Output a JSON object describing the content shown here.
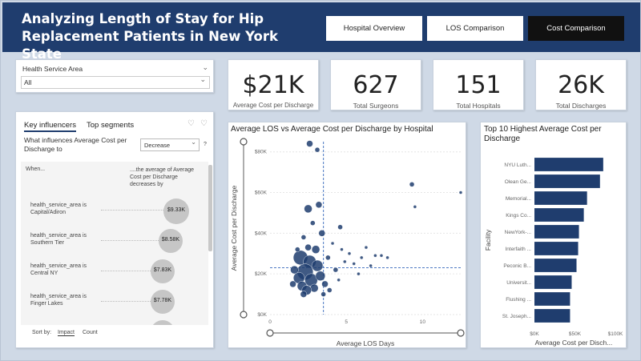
{
  "header": {
    "title_line1": "Analyzing Length of Stay for Hip",
    "title_line2": "Replacement Patients in New York State",
    "nav": [
      "Hospital Overview",
      "LOS Comparison",
      "Cost Comparison"
    ],
    "active_nav": "Cost Comparison"
  },
  "filter": {
    "label": "Health Service Area",
    "selected": "All"
  },
  "kpis": [
    {
      "value": "$21K",
      "label": "Average Cost per Discharge"
    },
    {
      "value": "627",
      "label": "Total Surgeons"
    },
    {
      "value": "151",
      "label": "Total Hospitals"
    },
    {
      "value": "26K",
      "label": "Total Discharges"
    }
  ],
  "influencers": {
    "tabs": [
      "Key influencers",
      "Top segments"
    ],
    "question": "What influences Average Cost per Discharge to",
    "direction": "Decrease",
    "help": "?",
    "col_when": "When...",
    "col_result": "....the average of Average Cost per Discharge decreases by",
    "rows": [
      {
        "condition": "health_service_area is Capital/Adiron",
        "value": "$9.33K"
      },
      {
        "condition": "health_service_area is Southern Tier",
        "value": "$8.58K"
      },
      {
        "condition": "health_service_area is Central NY",
        "value": "$7.83K"
      },
      {
        "condition": "health_service_area is Finger Lakes",
        "value": "$7.78K"
      }
    ],
    "sort_label": "Sort by:",
    "sort_options": [
      "Impact",
      "Count"
    ]
  },
  "scatter": {
    "title": "Average LOS vs Average Cost per Discharge by Hospital",
    "chart_data": {
      "type": "scatter",
      "title": "Average LOS vs Average Cost per Discharge by Hospital",
      "xlabel": "Average LOS Days",
      "ylabel": "Average Cost per Discharge",
      "xlim": [
        0,
        12.5
      ],
      "ylim": [
        0,
        85000
      ],
      "xticks": [
        "0",
        "5",
        "10"
      ],
      "xtick_values": [
        0,
        5,
        10
      ],
      "yticks": [
        "$0K",
        "$20K",
        "$40K",
        "$60K",
        "$80K"
      ],
      "ytick_values": [
        0,
        20000,
        40000,
        60000,
        80000
      ],
      "avg_x": 3.5,
      "avg_y": 23000,
      "color": "#1f3d6e",
      "points": [
        {
          "x": 2.6,
          "y": 84000,
          "r": 4
        },
        {
          "x": 3.1,
          "y": 81000,
          "r": 3
        },
        {
          "x": 9.3,
          "y": 64000,
          "r": 3
        },
        {
          "x": 9.5,
          "y": 53000,
          "r": 2
        },
        {
          "x": 12.5,
          "y": 60000,
          "r": 2
        },
        {
          "x": 2.5,
          "y": 52000,
          "r": 5
        },
        {
          "x": 3.2,
          "y": 54000,
          "r": 4
        },
        {
          "x": 2.8,
          "y": 45000,
          "r": 3
        },
        {
          "x": 4.6,
          "y": 43000,
          "r": 3
        },
        {
          "x": 3.4,
          "y": 40000,
          "r": 4
        },
        {
          "x": 2.2,
          "y": 38000,
          "r": 3
        },
        {
          "x": 4.1,
          "y": 35000,
          "r": 2
        },
        {
          "x": 6.3,
          "y": 33000,
          "r": 2
        },
        {
          "x": 3.0,
          "y": 32000,
          "r": 5
        },
        {
          "x": 2.0,
          "y": 28000,
          "r": 9
        },
        {
          "x": 2.6,
          "y": 26000,
          "r": 8
        },
        {
          "x": 3.1,
          "y": 24000,
          "r": 7
        },
        {
          "x": 2.3,
          "y": 21000,
          "r": 10
        },
        {
          "x": 1.9,
          "y": 18000,
          "r": 7
        },
        {
          "x": 2.7,
          "y": 17000,
          "r": 8
        },
        {
          "x": 3.3,
          "y": 19000,
          "r": 6
        },
        {
          "x": 2.1,
          "y": 14000,
          "r": 6
        },
        {
          "x": 2.9,
          "y": 13000,
          "r": 5
        },
        {
          "x": 1.6,
          "y": 22000,
          "r": 5
        },
        {
          "x": 2.4,
          "y": 12000,
          "r": 6
        },
        {
          "x": 3.6,
          "y": 15000,
          "r": 4
        },
        {
          "x": 1.5,
          "y": 15000,
          "r": 4
        },
        {
          "x": 3.8,
          "y": 28000,
          "r": 3
        },
        {
          "x": 4.3,
          "y": 22000,
          "r": 3
        },
        {
          "x": 4.9,
          "y": 26000,
          "r": 2
        },
        {
          "x": 5.2,
          "y": 30000,
          "r": 2
        },
        {
          "x": 5.5,
          "y": 25000,
          "r": 2
        },
        {
          "x": 6.0,
          "y": 28000,
          "r": 2
        },
        {
          "x": 6.9,
          "y": 29000,
          "r": 2
        },
        {
          "x": 7.3,
          "y": 29000,
          "r": 2
        },
        {
          "x": 7.7,
          "y": 28000,
          "r": 2
        },
        {
          "x": 6.6,
          "y": 24000,
          "r": 2
        },
        {
          "x": 4.5,
          "y": 17000,
          "r": 2
        },
        {
          "x": 3.9,
          "y": 12000,
          "r": 3
        },
        {
          "x": 2.2,
          "y": 10000,
          "r": 4
        },
        {
          "x": 3.5,
          "y": 10000,
          "r": 3
        },
        {
          "x": 4.7,
          "y": 32000,
          "r": 2
        },
        {
          "x": 5.8,
          "y": 20000,
          "r": 2
        },
        {
          "x": 2.5,
          "y": 33000,
          "r": 4
        },
        {
          "x": 1.8,
          "y": 32000,
          "r": 3
        }
      ]
    }
  },
  "bar": {
    "title": "Top 10 Highest Average Cost per Discharge",
    "chart_data": {
      "type": "bar",
      "orientation": "horizontal",
      "title": "Top 10 Highest Average Cost per Discharge",
      "xlabel": "Average Cost per Disch...",
      "ylabel": "Facility",
      "categories": [
        "NYU Luth...",
        "Olean Ge...",
        "Memorial...",
        "Kings Co...",
        "NewYork-...",
        "Interfaith ...",
        "Peconic B...",
        "Universit...",
        "Flushing ...",
        "St. Joseph..."
      ],
      "values": [
        85000,
        81000,
        65000,
        61000,
        55000,
        54000,
        52000,
        46000,
        44000,
        44000
      ],
      "xlim": [
        0,
        100000
      ],
      "xticks": [
        "$0K",
        "$50K",
        "$100K"
      ],
      "xtick_values": [
        0,
        50000,
        100000
      ],
      "color": "#1f3d6e"
    }
  }
}
